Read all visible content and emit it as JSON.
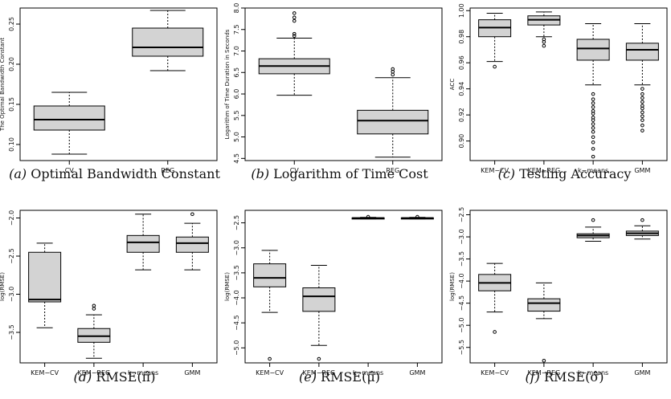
{
  "chart_data": [
    {
      "type": "box",
      "caption": "(a) Optimal Bandwidth Constant",
      "caption_label": "(a)",
      "caption_text": "Optimal Bandwidth Constant",
      "xlabel": "",
      "ylabel": "The Optimal Bandwidth Constant",
      "ylim": [
        0.08,
        0.27
      ],
      "yticks": [
        0.1,
        0.15,
        0.2,
        0.25
      ],
      "ytick_labels": [
        "0.10",
        "0.15",
        "0.20",
        "0.25"
      ],
      "categories": [
        "CV",
        "REG"
      ],
      "boxes": [
        {
          "label": "CV",
          "lower": 0.088,
          "q1": 0.118,
          "median": 0.131,
          "q3": 0.148,
          "upper": 0.165,
          "outliers": []
        },
        {
          "label": "REG",
          "lower": 0.192,
          "q1": 0.21,
          "median": 0.221,
          "q3": 0.245,
          "upper": 0.267,
          "outliers": []
        }
      ]
    },
    {
      "type": "box",
      "caption": "(b) Logarithm of Time Cost",
      "caption_label": "(b)",
      "caption_text": "Logarithm of Time Cost",
      "xlabel": "",
      "ylabel": "Logarithm of Time Duration in Seconds",
      "ylim": [
        4.45,
        8.0
      ],
      "yticks": [
        4.5,
        5.0,
        5.5,
        6.0,
        6.5,
        7.0,
        7.5,
        8.0
      ],
      "ytick_labels": [
        "4.5",
        "5.0",
        "5.5",
        "6.0",
        "6.5",
        "7.0",
        "7.5",
        "8.0"
      ],
      "categories": [
        "CV",
        "REG"
      ],
      "boxes": [
        {
          "label": "CV",
          "lower": 5.97,
          "q1": 6.47,
          "median": 6.65,
          "q3": 6.82,
          "upper": 7.3,
          "outliers": [
            7.35,
            7.4,
            7.7,
            7.78,
            7.88
          ]
        },
        {
          "label": "REG",
          "lower": 4.53,
          "q1": 5.07,
          "median": 5.38,
          "q3": 5.62,
          "upper": 6.38,
          "outliers": [
            6.45,
            6.52,
            6.58
          ]
        }
      ]
    },
    {
      "type": "box",
      "caption": "(c) Testing Accuracy",
      "caption_label": "(c)",
      "caption_text": "Testing Accuracy",
      "xlabel": "",
      "ylabel": "ACC",
      "ylim": [
        0.885,
        1.002
      ],
      "yticks": [
        0.9,
        0.92,
        0.94,
        0.96,
        0.98,
        1.0
      ],
      "ytick_labels": [
        "0.90",
        "0.92",
        "0.94",
        "0.96",
        "0.98",
        "1.00"
      ],
      "categories": [
        "KEM−CV",
        "KEM−REG",
        "k−means",
        "GMM"
      ],
      "boxes": [
        {
          "label": "KEM−CV",
          "lower": 0.961,
          "q1": 0.98,
          "median": 0.987,
          "q3": 0.993,
          "upper": 0.998,
          "outliers": [
            0.957
          ]
        },
        {
          "label": "KEM−REG",
          "lower": 0.98,
          "q1": 0.989,
          "median": 0.993,
          "q3": 0.996,
          "upper": 0.999,
          "outliers": [
            0.978,
            0.976,
            0.973
          ]
        },
        {
          "label": "k−means",
          "lower": 0.943,
          "q1": 0.962,
          "median": 0.971,
          "q3": 0.978,
          "upper": 0.99,
          "outliers": [
            0.936,
            0.932,
            0.929,
            0.926,
            0.923,
            0.921,
            0.918,
            0.916,
            0.913,
            0.91,
            0.907,
            0.903,
            0.899,
            0.894,
            0.888
          ]
        },
        {
          "label": "GMM",
          "lower": 0.943,
          "q1": 0.962,
          "median": 0.97,
          "q3": 0.975,
          "upper": 0.99,
          "outliers": [
            0.94,
            0.936,
            0.933,
            0.93,
            0.927,
            0.925,
            0.922,
            0.919,
            0.916,
            0.912,
            0.908
          ]
        }
      ]
    },
    {
      "type": "box",
      "caption": "(d) RMSE(π̂)",
      "caption_label": "(d)",
      "caption_text": "RMSE(π̂)",
      "xlabel": "",
      "ylabel": "log(RMSE)",
      "ylim": [
        -3.9,
        -1.9
      ],
      "yticks": [
        -3.5,
        -3.0,
        -2.5,
        -2.0
      ],
      "ytick_labels": [
        "−3.5",
        "−3.0",
        "−2.5",
        "−2.0"
      ],
      "categories": [
        "KEM−CV",
        "KEM−REG",
        "k−means",
        "GMM"
      ],
      "boxes": [
        {
          "label": "KEM−CV",
          "lower": -3.44,
          "q1": -3.1,
          "median": -3.07,
          "q3": -2.45,
          "upper": -2.33,
          "outliers": []
        },
        {
          "label": "KEM−REG",
          "lower": -3.84,
          "q1": -3.63,
          "median": -3.55,
          "q3": -3.45,
          "upper": -3.27,
          "outliers": [
            -3.15,
            -3.19
          ]
        },
        {
          "label": "k−means",
          "lower": -2.68,
          "q1": -2.45,
          "median": -2.32,
          "q3": -2.23,
          "upper": -1.95,
          "outliers": []
        },
        {
          "label": "GMM",
          "lower": -2.68,
          "q1": -2.45,
          "median": -2.33,
          "q3": -2.25,
          "upper": -2.07,
          "outliers": [
            -1.95
          ]
        }
      ]
    },
    {
      "type": "box",
      "caption": "(e) RMSE(μ̂)",
      "caption_label": "(e)",
      "caption_text": "RMSE(μ̂)",
      "xlabel": "",
      "ylabel": "log(RMSE)",
      "ylim": [
        -5.3,
        -2.25
      ],
      "yticks": [
        -5.0,
        -4.5,
        -4.0,
        -3.5,
        -3.0,
        -2.5
      ],
      "ytick_labels": [
        "−5.0",
        "−4.5",
        "−4.0",
        "−3.5",
        "−3.0",
        "−2.5"
      ],
      "categories": [
        "KEM−CV",
        "KEM−REG",
        "k−means",
        "GMM"
      ],
      "boxes": [
        {
          "label": "KEM−CV",
          "lower": -4.29,
          "q1": -3.78,
          "median": -3.6,
          "q3": -3.32,
          "upper": -3.05,
          "outliers": [
            -5.22
          ]
        },
        {
          "label": "KEM−REG",
          "lower": -4.95,
          "q1": -4.27,
          "median": -3.97,
          "q3": -3.8,
          "upper": -3.35,
          "outliers": [
            -5.22
          ]
        },
        {
          "label": "k−means",
          "lower": -2.42,
          "q1": -2.41,
          "median": -2.405,
          "q3": -2.4,
          "upper": -2.39,
          "outliers": [
            -2.38
          ]
        },
        {
          "label": "GMM",
          "lower": -2.42,
          "q1": -2.41,
          "median": -2.405,
          "q3": -2.4,
          "upper": -2.39,
          "outliers": [
            -2.38
          ]
        }
      ]
    },
    {
      "type": "box",
      "caption": "(f) RMSE(σ̂)",
      "caption_label": "(f)",
      "caption_text": "RMSE(σ̂)",
      "xlabel": "",
      "ylabel": "log(RMSE)",
      "ylim": [
        -5.85,
        -2.4
      ],
      "yticks": [
        -5.5,
        -5.0,
        -4.5,
        -4.0,
        -3.5,
        -3.0,
        -2.5
      ],
      "ytick_labels": [
        "−5.5",
        "−5.0",
        "−4.5",
        "−4.0",
        "−3.5",
        "−3.0",
        "−2.5"
      ],
      "categories": [
        "KEM−CV",
        "KEM−REG",
        "k−means",
        "GMM"
      ],
      "boxes": [
        {
          "label": "KEM−CV",
          "lower": -4.7,
          "q1": -4.22,
          "median": -4.04,
          "q3": -3.85,
          "upper": -3.6,
          "outliers": [
            -5.15
          ]
        },
        {
          "label": "KEM−REG",
          "lower": -4.85,
          "q1": -4.68,
          "median": -4.5,
          "q3": -4.4,
          "upper": -4.04,
          "outliers": [
            -5.8
          ]
        },
        {
          "label": "k−means",
          "lower": -3.1,
          "q1": -3.02,
          "median": -2.97,
          "q3": -2.93,
          "upper": -2.78,
          "outliers": [
            -2.62
          ]
        },
        {
          "label": "GMM",
          "lower": -3.05,
          "q1": -2.97,
          "median": -2.92,
          "q3": -2.87,
          "upper": -2.75,
          "outliers": [
            -2.62
          ]
        }
      ]
    }
  ],
  "colors": {
    "box_fill": "#d3d3d3",
    "stroke": "#000000",
    "caption": "#111111"
  }
}
